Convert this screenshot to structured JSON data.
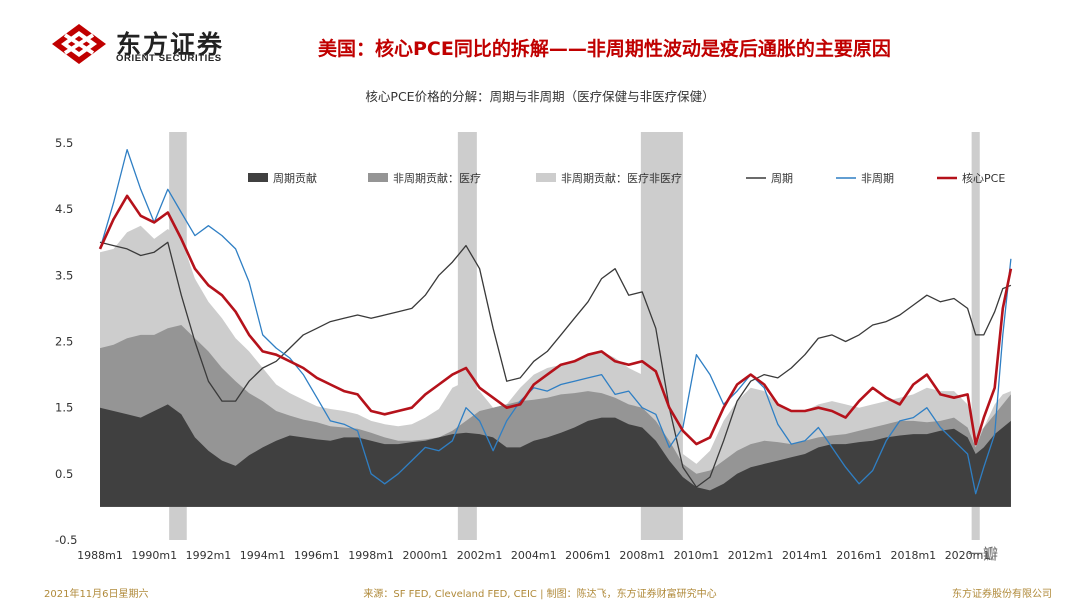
{
  "header": {
    "brand_cn": "东方证券",
    "brand_en": "ORIENT SECURITIES",
    "headline": "美国：核心PCE同比的拆解——非周期性波动是疫后通胀的主要原因"
  },
  "footer": {
    "date": "2021年11月6日星期六",
    "source": "来源：SF FED, Cleveland FED, CEIC | 制图：陈达飞，东方证券财富研究中心",
    "company": "东方证券股份有限公司"
  },
  "watermark": "一瓣",
  "colors": {
    "brand_red": "#c00000",
    "cyc_contrib": "#404040",
    "noncyc_med": "#959595",
    "noncyc_nonmed": "#cdcdcd",
    "recession": "#cdcdcd",
    "cyclical": "#3a3a3a",
    "noncyclical": "#2f7fc4",
    "core_pce": "#b5121b"
  },
  "chart_data": {
    "type": "area",
    "title": "核心PCE价格的分解：周期与非周期（医疗保健与非医疗保健）",
    "xlabel": "",
    "ylabel": "",
    "ylim": [
      -0.5,
      5.5
    ],
    "yticks": [
      -0.5,
      0.5,
      1.5,
      2.5,
      3.5,
      4.5,
      5.5
    ],
    "xlim": [
      1988.0,
      2021.75
    ],
    "xticks": [
      "1988m1",
      "1990m1",
      "1992m1",
      "1994m1",
      "1996m1",
      "1998m1",
      "2000m1",
      "2002m1",
      "2004m1",
      "2006m1",
      "2008m1",
      "2010m1",
      "2012m1",
      "2014m1",
      "2016m1",
      "2018m1",
      "2020m1"
    ],
    "recessions": [
      [
        1990.55,
        1991.2
      ],
      [
        2001.2,
        2001.9
      ],
      [
        2007.95,
        2009.5
      ],
      [
        2020.15,
        2020.45
      ]
    ],
    "legend": [
      "周期贡献",
      "非周期贡献：医疗",
      "非周期贡献：医疗非医疗",
      "周期",
      "非周期",
      "核心PCE"
    ],
    "x": [
      1988.0,
      1988.5,
      1989.0,
      1989.5,
      1990.0,
      1990.5,
      1991.0,
      1991.5,
      1992.0,
      1992.5,
      1993.0,
      1993.5,
      1994.0,
      1994.5,
      1995.0,
      1995.5,
      1996.0,
      1996.5,
      1997.0,
      1997.5,
      1998.0,
      1998.5,
      1999.0,
      1999.5,
      2000.0,
      2000.5,
      2001.0,
      2001.5,
      2002.0,
      2002.5,
      2003.0,
      2003.5,
      2004.0,
      2004.5,
      2005.0,
      2005.5,
      2006.0,
      2006.5,
      2007.0,
      2007.5,
      2008.0,
      2008.5,
      2009.0,
      2009.5,
      2010.0,
      2010.5,
      2011.0,
      2011.5,
      2012.0,
      2012.5,
      2013.0,
      2013.5,
      2014.0,
      2014.5,
      2015.0,
      2015.5,
      2016.0,
      2016.5,
      2017.0,
      2017.5,
      2018.0,
      2018.5,
      2019.0,
      2019.5,
      2020.0,
      2020.3,
      2020.6,
      2021.0,
      2021.3,
      2021.6
    ],
    "series": [
      {
        "name": "周期贡献",
        "kind": "area",
        "values": [
          1.5,
          1.45,
          1.4,
          1.35,
          1.45,
          1.55,
          1.4,
          1.05,
          0.85,
          0.7,
          0.62,
          0.78,
          0.9,
          1.0,
          1.08,
          1.05,
          1.02,
          1.0,
          1.05,
          1.05,
          1.0,
          0.95,
          0.95,
          0.98,
          1.0,
          1.05,
          1.1,
          1.12,
          1.1,
          1.05,
          0.9,
          0.9,
          1.0,
          1.05,
          1.12,
          1.2,
          1.3,
          1.35,
          1.35,
          1.25,
          1.2,
          1.0,
          0.7,
          0.45,
          0.3,
          0.25,
          0.35,
          0.5,
          0.6,
          0.65,
          0.7,
          0.75,
          0.8,
          0.9,
          0.95,
          0.95,
          0.98,
          1.0,
          1.05,
          1.08,
          1.1,
          1.1,
          1.15,
          1.18,
          1.05,
          0.8,
          0.9,
          1.1,
          1.2,
          1.3
        ]
      },
      {
        "name": "非周期贡献：医疗",
        "kind": "area",
        "values": [
          2.4,
          2.45,
          2.55,
          2.6,
          2.6,
          2.7,
          2.75,
          2.55,
          2.35,
          2.1,
          1.9,
          1.72,
          1.6,
          1.45,
          1.38,
          1.32,
          1.28,
          1.22,
          1.2,
          1.18,
          1.12,
          1.05,
          1.0,
          1.0,
          1.02,
          1.05,
          1.15,
          1.3,
          1.45,
          1.5,
          1.55,
          1.6,
          1.62,
          1.65,
          1.7,
          1.72,
          1.75,
          1.72,
          1.65,
          1.55,
          1.5,
          1.3,
          1.0,
          0.65,
          0.5,
          0.55,
          0.7,
          0.85,
          0.95,
          1.0,
          0.98,
          0.95,
          1.0,
          1.05,
          1.08,
          1.1,
          1.15,
          1.2,
          1.25,
          1.3,
          1.3,
          1.28,
          1.3,
          1.35,
          1.2,
          0.9,
          1.2,
          1.4,
          1.55,
          1.7
        ]
      },
      {
        "name": "非周期贡献：医疗非医疗",
        "kind": "area",
        "values": [
          3.85,
          3.9,
          4.15,
          4.25,
          4.05,
          4.2,
          4.05,
          3.45,
          3.1,
          2.85,
          2.55,
          2.35,
          2.1,
          1.85,
          1.72,
          1.62,
          1.52,
          1.48,
          1.45,
          1.4,
          1.3,
          1.25,
          1.22,
          1.25,
          1.35,
          1.48,
          1.8,
          1.9,
          1.75,
          1.5,
          1.55,
          1.8,
          2.0,
          2.1,
          2.15,
          2.2,
          2.3,
          2.35,
          2.25,
          2.1,
          2.0,
          1.7,
          1.2,
          0.8,
          0.65,
          0.85,
          1.3,
          1.6,
          1.8,
          1.75,
          1.55,
          1.45,
          1.45,
          1.55,
          1.6,
          1.55,
          1.5,
          1.55,
          1.6,
          1.65,
          1.7,
          1.8,
          1.75,
          1.75,
          1.55,
          1.1,
          1.2,
          1.55,
          1.7,
          1.75
        ]
      },
      {
        "name": "周期",
        "kind": "line",
        "values": [
          4.0,
          3.95,
          3.9,
          3.8,
          3.85,
          4.0,
          3.2,
          2.5,
          1.9,
          1.6,
          1.6,
          1.9,
          2.1,
          2.2,
          2.4,
          2.6,
          2.7,
          2.8,
          2.85,
          2.9,
          2.85,
          2.9,
          2.95,
          3.0,
          3.2,
          3.5,
          3.7,
          3.95,
          3.6,
          2.7,
          1.9,
          1.95,
          2.2,
          2.35,
          2.6,
          2.85,
          3.1,
          3.45,
          3.6,
          3.2,
          3.25,
          2.7,
          1.5,
          0.6,
          0.3,
          0.45,
          1.0,
          1.6,
          1.9,
          2.0,
          1.95,
          2.1,
          2.3,
          2.55,
          2.6,
          2.5,
          2.6,
          2.75,
          2.8,
          2.9,
          3.05,
          3.2,
          3.1,
          3.15,
          3.0,
          2.6,
          2.6,
          2.95,
          3.3,
          3.35
        ]
      },
      {
        "name": "非周期",
        "kind": "line",
        "values": [
          3.9,
          4.6,
          5.4,
          4.8,
          4.3,
          4.8,
          4.45,
          4.1,
          4.25,
          4.1,
          3.9,
          3.4,
          2.6,
          2.4,
          2.25,
          2.0,
          1.65,
          1.3,
          1.25,
          1.15,
          0.5,
          0.35,
          0.5,
          0.7,
          0.9,
          0.85,
          1.0,
          1.5,
          1.3,
          0.85,
          1.3,
          1.6,
          1.8,
          1.75,
          1.85,
          1.9,
          1.95,
          2.0,
          1.7,
          1.75,
          1.5,
          1.4,
          0.9,
          1.2,
          2.3,
          2.0,
          1.55,
          1.75,
          2.0,
          1.8,
          1.25,
          0.95,
          1.0,
          1.2,
          0.9,
          0.6,
          0.35,
          0.55,
          1.0,
          1.3,
          1.35,
          1.5,
          1.2,
          1.0,
          0.8,
          0.2,
          0.6,
          1.1,
          2.6,
          3.75
        ]
      },
      {
        "name": "核心PCE",
        "kind": "line",
        "values": [
          3.9,
          4.35,
          4.7,
          4.4,
          4.3,
          4.45,
          4.05,
          3.6,
          3.35,
          3.2,
          2.95,
          2.6,
          2.35,
          2.3,
          2.2,
          2.1,
          1.95,
          1.85,
          1.75,
          1.7,
          1.45,
          1.4,
          1.45,
          1.5,
          1.7,
          1.85,
          2.0,
          2.1,
          1.8,
          1.65,
          1.5,
          1.55,
          1.85,
          2.0,
          2.15,
          2.2,
          2.3,
          2.35,
          2.2,
          2.15,
          2.2,
          2.05,
          1.5,
          1.15,
          0.95,
          1.05,
          1.5,
          1.85,
          2.0,
          1.85,
          1.55,
          1.45,
          1.45,
          1.5,
          1.45,
          1.35,
          1.6,
          1.8,
          1.65,
          1.55,
          1.85,
          2.0,
          1.7,
          1.65,
          1.7,
          0.95,
          1.35,
          1.8,
          3.0,
          3.6
        ]
      }
    ]
  }
}
